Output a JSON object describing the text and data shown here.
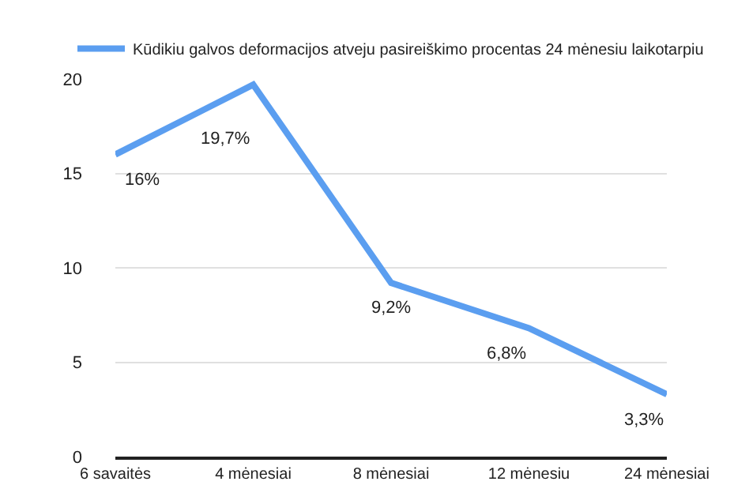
{
  "chart_data": {
    "type": "line",
    "categories": [
      "6 savaitės",
      "4 mėnesiai",
      "8 mėnesiai",
      "12 mėnesiu",
      "24 mėnesiai"
    ],
    "series": [
      {
        "name": "Kūdikiu galvos deformacijos atveju pasireiškimo procentas 24 mėnesiu laikotarpiu",
        "color": "#5b9ef0",
        "values": [
          16,
          19.7,
          9.2,
          6.8,
          3.3
        ],
        "value_labels": [
          "16%",
          "19,7%",
          "9,2%",
          "6,8%",
          "3,3%"
        ]
      }
    ],
    "ylim": [
      0,
      20
    ],
    "yticks": [
      0,
      5,
      10,
      15,
      20
    ],
    "grid": "y",
    "legend": "top",
    "marker": "none",
    "line_style": "solid"
  }
}
